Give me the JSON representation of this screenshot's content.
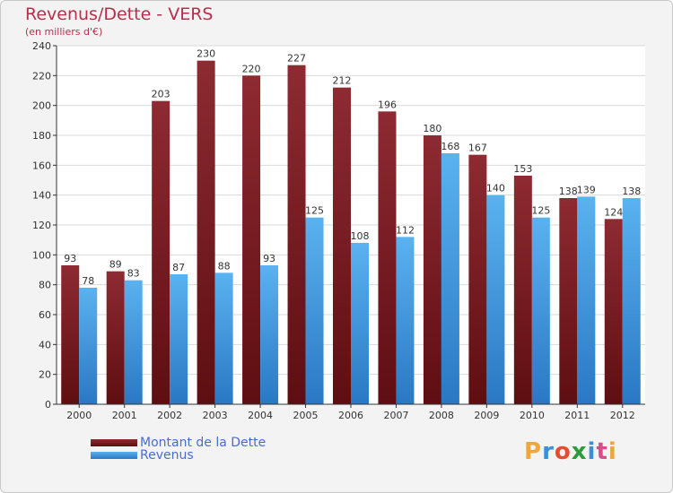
{
  "header": {
    "title": "Revenus/Dette - VERS",
    "subtitle": "(en milliers d'€)"
  },
  "colors": {
    "dette": "#7a1e22",
    "revenus": "#4ea6e6",
    "label": "#333333",
    "logo": [
      "#f0a63a",
      "#3b8fd6",
      "#e64d2e",
      "#2c9b3a",
      "#3b8fd6",
      "#d84d8a"
    ]
  },
  "legend": {
    "items": [
      {
        "label": "Montant de la Dette"
      },
      {
        "label": "Revenus"
      }
    ]
  },
  "logo": {
    "text": "Proxiti",
    "icon": "proxiti-logo"
  },
  "chart_data": {
    "type": "bar",
    "title": "Revenus/Dette - VERS",
    "subtitle": "(en milliers d'€)",
    "xlabel": "",
    "ylabel": "",
    "ylim": [
      0,
      240
    ],
    "yticks": [
      0,
      20,
      40,
      60,
      80,
      100,
      120,
      140,
      160,
      180,
      200,
      220,
      240
    ],
    "grid": true,
    "legend_position": "bottom-left",
    "categories": [
      "2000",
      "2001",
      "2002",
      "2003",
      "2004",
      "2005",
      "2006",
      "2007",
      "2008",
      "2009",
      "2010",
      "2011",
      "2012"
    ],
    "series": [
      {
        "name": "Montant de la Dette",
        "values": [
          93,
          89,
          203,
          230,
          220,
          227,
          212,
          196,
          180,
          167,
          153,
          138,
          124
        ]
      },
      {
        "name": "Revenus",
        "values": [
          78,
          83,
          87,
          88,
          93,
          125,
          108,
          112,
          168,
          140,
          125,
          139,
          138
        ]
      }
    ]
  }
}
